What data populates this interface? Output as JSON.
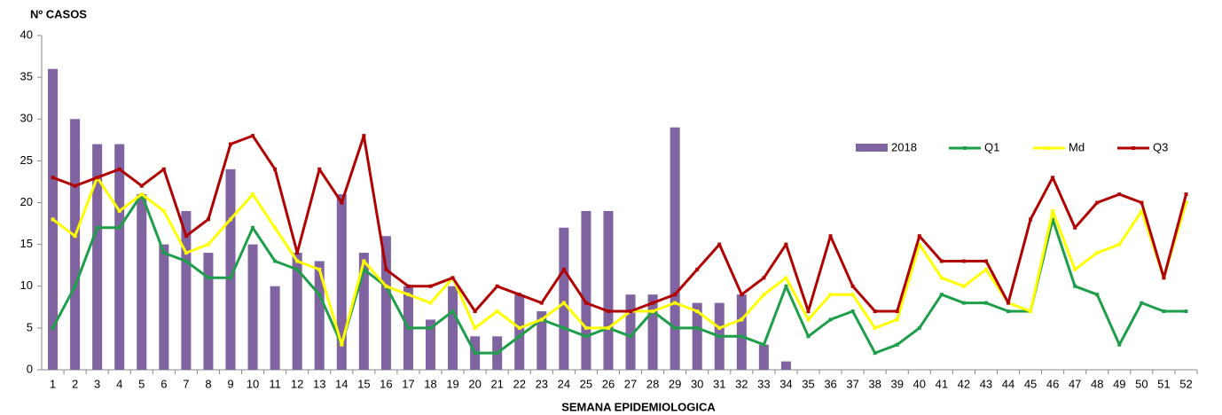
{
  "chart_data": {
    "type": "bar",
    "y_label": "Nº CASOS",
    "x_label": "SEMANA EPIDEMIOLOGICA",
    "categories": [
      "1",
      "2",
      "3",
      "4",
      "5",
      "6",
      "7",
      "8",
      "9",
      "10",
      "11",
      "12",
      "13",
      "14",
      "15",
      "16",
      "17",
      "18",
      "19",
      "20",
      "21",
      "22",
      "23",
      "24",
      "25",
      "26",
      "27",
      "28",
      "29",
      "30",
      "31",
      "32",
      "33",
      "34",
      "35",
      "36",
      "37",
      "38",
      "39",
      "40",
      "41",
      "42",
      "43",
      "44",
      "45",
      "46",
      "47",
      "48",
      "49",
      "50",
      "51",
      "52"
    ],
    "ylim": [
      0,
      40
    ],
    "yticks": [
      0,
      5,
      10,
      15,
      20,
      25,
      30,
      35,
      40
    ],
    "grid": false,
    "legend": "right",
    "series": [
      {
        "name": "2018",
        "type": "bar",
        "color": "#8064a2",
        "values": [
          36,
          30,
          27,
          27,
          21,
          15,
          19,
          14,
          24,
          15,
          10,
          14,
          13,
          21,
          14,
          16,
          10,
          6,
          10,
          4,
          4,
          9,
          7,
          17,
          19,
          19,
          9,
          9,
          29,
          8,
          8,
          9,
          3,
          1,
          null,
          null,
          null,
          null,
          null,
          null,
          null,
          null,
          null,
          null,
          null,
          null,
          null,
          null,
          null,
          null,
          null,
          null
        ]
      },
      {
        "name": "Q1",
        "type": "line",
        "color": "#1e9e4a",
        "values": [
          5,
          10,
          17,
          17,
          21,
          14,
          13,
          11,
          11,
          17,
          13,
          12,
          9,
          3,
          12,
          10,
          5,
          5,
          7,
          2,
          2,
          4,
          6,
          5,
          4,
          5,
          4,
          7,
          5,
          5,
          4,
          4,
          3,
          10,
          4,
          6,
          7,
          2,
          3,
          5,
          9,
          8,
          8,
          7,
          7,
          18,
          10,
          9,
          3,
          8,
          7,
          7
        ]
      },
      {
        "name": "Md",
        "type": "line",
        "color": "#ffff00",
        "values": [
          18,
          16,
          23,
          19,
          21,
          19,
          14,
          15,
          18,
          21,
          17,
          13,
          12,
          3,
          13,
          10,
          9,
          8,
          11,
          5,
          7,
          5,
          6,
          8,
          5,
          5,
          7,
          7,
          8,
          7,
          5,
          6,
          9,
          11,
          6,
          9,
          9,
          5,
          6,
          15,
          11,
          10,
          12,
          8,
          7,
          19,
          12,
          14,
          15,
          19,
          11,
          20
        ]
      },
      {
        "name": "Q3",
        "type": "line",
        "color": "#b00000",
        "values": [
          23,
          22,
          23,
          24,
          22,
          24,
          16,
          18,
          27,
          28,
          24,
          14,
          24,
          20,
          28,
          12,
          10,
          10,
          11,
          7,
          10,
          9,
          8,
          12,
          8,
          7,
          7,
          8,
          9,
          12,
          15,
          9,
          11,
          15,
          7,
          16,
          10,
          7,
          7,
          16,
          13,
          13,
          13,
          8,
          18,
          23,
          17,
          20,
          21,
          20,
          11,
          21
        ]
      }
    ]
  }
}
